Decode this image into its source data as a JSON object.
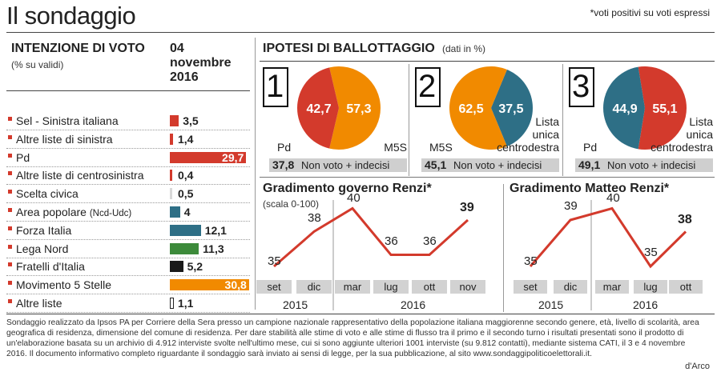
{
  "title": "Il sondaggio",
  "footnote": "*voti positivi su voti espressi",
  "vote_intention": {
    "heading": "INTENZIONE DI VOTO",
    "subheading": "(% su validi)",
    "date_line1": "04",
    "date_line2": "novembre",
    "date_line3": "2016",
    "rows": [
      {
        "label": "Sel - Sinistra italiana",
        "label_small": "",
        "value": "3,5",
        "color": "#d33a2c",
        "style": "fill"
      },
      {
        "label": "Altre liste di sinistra",
        "label_small": "",
        "value": "1,4",
        "color": "#d33a2c",
        "style": "fill"
      },
      {
        "label": "Pd",
        "label_small": "",
        "value": "29,7",
        "color": "#d33a2c",
        "style": "fill"
      },
      {
        "label": "Altre liste di centrosinistra",
        "label_small": "",
        "value": "0,4",
        "color": "#d33a2c",
        "style": "fill"
      },
      {
        "label": "Scelta civica",
        "label_small": "",
        "value": "0,5",
        "color": "#d9d9d9",
        "style": "fill"
      },
      {
        "label": "Area popolare ",
        "label_small": "(Ncd-Udc)",
        "value": "4",
        "color": "#2e6f86",
        "style": "fill"
      },
      {
        "label": "Forza Italia",
        "label_small": "",
        "value": "12,1",
        "color": "#2e6f86",
        "style": "fill"
      },
      {
        "label": "Lega Nord",
        "label_small": "",
        "value": "11,3",
        "color": "#3c8a3a",
        "style": "fill"
      },
      {
        "label": "Fratelli d'Italia",
        "label_small": "",
        "value": "5,2",
        "color": "#1a1a1a",
        "style": "fill"
      },
      {
        "label": "Movimento 5 Stelle",
        "label_small": "",
        "value": "30,8",
        "color": "#f18a00",
        "style": "fill"
      },
      {
        "label": "Altre liste",
        "label_small": "",
        "value": "1,1",
        "color": "#ffffff",
        "style": "outline"
      }
    ]
  },
  "ballottaggio": {
    "heading": "IPOTESI  DI BALLOTTAGGIO",
    "subheading": "(dati in %)",
    "scenarios": [
      {
        "number": "1",
        "left_label": "Pd",
        "right_label": "M5S",
        "left_value": "42,7",
        "right_value": "57,3",
        "left_color": "#d33a2c",
        "right_color": "#f18a00",
        "band_value": "37,8",
        "band_text": "Non voto + indecisi"
      },
      {
        "number": "2",
        "left_label": "M5S",
        "right_label": "Lista\nunica\ncentrodestra",
        "left_value": "62,5",
        "right_value": "37,5",
        "left_color": "#f18a00",
        "right_color": "#2e6f86",
        "band_value": "45,1",
        "band_text": "Non voto + indecisi"
      },
      {
        "number": "3",
        "left_label": "Pd",
        "right_label": "Lista\nunica\ncentrodestra",
        "left_value": "44,9",
        "right_value": "55,1",
        "left_color": "#2e6f86",
        "right_color": "#d33a2c",
        "band_value": "49,1",
        "band_text": "Non voto + indecisi"
      }
    ]
  },
  "chart_data": [
    {
      "type": "pie",
      "categories": [
        "Pd",
        "M5S"
      ],
      "values": [
        42.7,
        57.3
      ],
      "title": "1"
    },
    {
      "type": "pie",
      "categories": [
        "M5S",
        "Lista unica centrodestra"
      ],
      "values": [
        62.5,
        37.5
      ],
      "title": "2"
    },
    {
      "type": "pie",
      "categories": [
        "Pd",
        "Lista unica centrodestra"
      ],
      "values": [
        44.9,
        55.1
      ],
      "title": "3"
    },
    {
      "type": "line",
      "title": "Gradimento governo Renzi*",
      "subtitle": "(scala 0-100)",
      "categories": [
        "set",
        "dic",
        "mar",
        "lug",
        "ott",
        "nov"
      ],
      "values": [
        35,
        38,
        40,
        36,
        36,
        39
      ],
      "value_labels": [
        "35",
        "38",
        "40",
        "36",
        "36",
        "39"
      ],
      "year_labels": [
        "2015",
        "2016"
      ],
      "line_color": "#d33a2c"
    },
    {
      "type": "line",
      "title": "Gradimento Matteo Renzi*",
      "categories": [
        "set",
        "dic",
        "mar",
        "lug",
        "ott"
      ],
      "values": [
        35,
        39,
        40,
        35,
        38
      ],
      "value_labels": [
        "35",
        "39",
        "40",
        "35",
        "38"
      ],
      "year_labels": [
        "2015",
        "2016"
      ],
      "line_color": "#d33a2c"
    }
  ],
  "source_text": "Sondaggio realizzato da Ipsos PA per Corriere della Sera presso un campione nazionale rappresentativo della popolazione italiana maggiorenne secondo genere, età, livello di scolarità, area geografica di residenza, dimensione del comune di residenza. Per dare stabilità alle stime di voto e alle stime di flusso tra il primo e il secondo turno i risultati presentati sono il prodotto di un'elaborazione basata su un archivio di 4.912 interviste svolte nell'ultimo mese, cui si sono aggiunte ulteriori 1001 interviste (su 9.812 contatti), mediante sistema CATI, il 3 e 4 novembre  2016. Il documento informativo completo riguardante il sondaggio sarà inviato ai sensi di legge, per la sua pubblicazione, al sito www.sondaggipoliticoelettorali.it.",
  "credit": "d'Arco"
}
